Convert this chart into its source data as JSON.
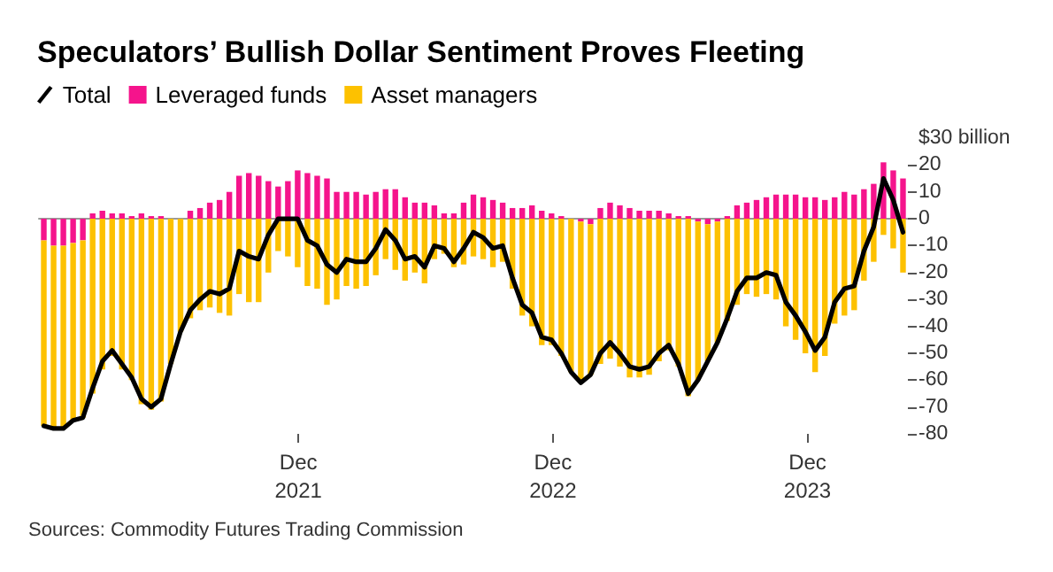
{
  "chart_data": {
    "type": "bar",
    "title": "Speculators’ Bullish Dollar Sentiment Proves Fleeting",
    "stacked": true,
    "legend": "top left",
    "x": [
      "2020-12-01",
      "2020-12-15",
      "2020-12-29",
      "2021-01-12",
      "2021-01-26",
      "2021-02-09",
      "2021-02-23",
      "2021-03-09",
      "2021-03-23",
      "2021-04-06",
      "2021-04-20",
      "2021-05-04",
      "2021-05-18",
      "2021-06-01",
      "2021-06-15",
      "2021-06-29",
      "2021-07-13",
      "2021-07-27",
      "2021-08-10",
      "2021-08-24",
      "2021-09-07",
      "2021-09-21",
      "2021-10-05",
      "2021-10-19",
      "2021-11-02",
      "2021-11-16",
      "2021-11-30",
      "2021-12-14",
      "2021-12-28",
      "2022-01-11",
      "2022-01-25",
      "2022-02-08",
      "2022-02-22",
      "2022-03-08",
      "2022-03-22",
      "2022-04-05",
      "2022-04-19",
      "2022-05-03",
      "2022-05-17",
      "2022-05-31",
      "2022-06-14",
      "2022-06-28",
      "2022-07-12",
      "2022-07-26",
      "2022-08-09",
      "2022-08-23",
      "2022-09-06",
      "2022-09-20",
      "2022-10-04",
      "2022-10-18",
      "2022-11-01",
      "2022-11-15",
      "2022-11-29",
      "2022-12-13",
      "2022-12-27",
      "2023-01-10",
      "2023-01-24",
      "2023-02-07",
      "2023-02-21",
      "2023-03-07",
      "2023-03-21",
      "2023-04-04",
      "2023-04-18",
      "2023-05-02",
      "2023-05-16",
      "2023-05-30",
      "2023-06-13",
      "2023-06-27",
      "2023-07-11",
      "2023-07-25",
      "2023-08-08",
      "2023-08-22",
      "2023-09-05",
      "2023-09-19",
      "2023-10-03",
      "2023-10-17",
      "2023-10-31",
      "2023-11-14",
      "2023-11-28",
      "2023-12-12",
      "2023-12-26",
      "2024-01-09",
      "2024-01-23",
      "2024-02-06",
      "2024-02-20",
      "2024-03-05",
      "2024-03-19",
      "2024-04-02",
      "2024-04-16"
    ],
    "series": [
      {
        "name": "Total",
        "type": "line",
        "color": "#000000",
        "values": [
          -77,
          -78,
          -78,
          -75,
          -74,
          -63,
          -53,
          -49,
          -54,
          -59,
          -67,
          -70,
          -67,
          -54,
          -42,
          -34,
          -30,
          -27,
          -28,
          -26,
          -12,
          -14,
          -15,
          -6,
          0,
          0,
          0,
          -8,
          -10,
          -17,
          -20,
          -15,
          -16,
          -16,
          -11,
          -4,
          -8,
          -15,
          -14,
          -18,
          -10,
          -11,
          -16,
          -11,
          -5,
          -7,
          -11,
          -10,
          -22,
          -32,
          -35,
          -44,
          -45,
          -50,
          -57,
          -61,
          -58,
          -50,
          -46,
          -50,
          -55,
          -56,
          -55,
          -50,
          -47,
          -54,
          -65,
          -60,
          -53,
          -46,
          -37,
          -27,
          -22,
          -22,
          -20,
          -21,
          -31,
          -36,
          -42,
          -49,
          -44,
          -31,
          -26,
          -25,
          -12,
          -3,
          15,
          7,
          -5
        ]
      },
      {
        "name": "Leveraged funds",
        "color": "#f5148c",
        "values": [
          -8,
          -10,
          -10,
          -9,
          -8,
          2,
          3,
          2,
          2,
          1,
          2,
          1,
          1,
          0,
          0,
          3,
          4,
          6,
          7,
          10,
          16,
          17,
          16,
          14,
          12,
          14,
          18,
          17,
          16,
          15,
          10,
          10,
          10,
          9,
          10,
          11,
          11,
          8,
          6,
          6,
          5,
          2,
          2,
          6,
          9,
          8,
          7,
          6,
          4,
          4,
          5,
          3,
          2,
          1,
          0,
          -1,
          -2,
          4,
          6,
          5,
          4,
          3,
          3,
          3,
          2,
          1,
          1,
          -1,
          -2,
          -1,
          1,
          5,
          6,
          7,
          8,
          9,
          9,
          9,
          8,
          8,
          7,
          8,
          10,
          9,
          11,
          13,
          21,
          18,
          15
        ]
      },
      {
        "name": "Asset managers",
        "color": "#fdc100",
        "values": [
          -69,
          -68,
          -68,
          -66,
          -66,
          -65,
          -56,
          -51,
          -56,
          -60,
          -69,
          -71,
          -68,
          -54,
          -42,
          -37,
          -34,
          -33,
          -35,
          -36,
          -28,
          -31,
          -31,
          -20,
          -12,
          -14,
          -18,
          -25,
          -26,
          -32,
          -30,
          -25,
          -26,
          -25,
          -21,
          -15,
          -19,
          -23,
          -20,
          -24,
          -15,
          -13,
          -18,
          -17,
          -14,
          -15,
          -18,
          -16,
          -26,
          -36,
          -40,
          -47,
          -47,
          -51,
          -57,
          -60,
          -56,
          -54,
          -52,
          -55,
          -59,
          -59,
          -58,
          -53,
          -49,
          -55,
          -66,
          -59,
          -51,
          -45,
          -38,
          -32,
          -28,
          -29,
          -28,
          -30,
          -40,
          -45,
          -50,
          -57,
          -51,
          -39,
          -36,
          -34,
          -23,
          -16,
          -6,
          -11,
          -20
        ]
      }
    ],
    "xlim": [
      "2020-11-24",
      "2024-04-23"
    ],
    "xticks": [
      {
        "value": "2021-12-01",
        "label": "Dec\n2021"
      },
      {
        "value": "2022-12-01",
        "label": "Dec\n2022"
      },
      {
        "value": "2023-12-01",
        "label": "Dec\n2023"
      }
    ],
    "ylim": [
      -80,
      30
    ],
    "yticks": [
      -80,
      -70,
      -60,
      -50,
      -40,
      -30,
      -20,
      -10,
      0,
      10,
      20,
      {
        "value": 30,
        "label": "$30 billion"
      }
    ],
    "annotations": [
      "Sources: Commodity Futures Trading Commission"
    ]
  }
}
